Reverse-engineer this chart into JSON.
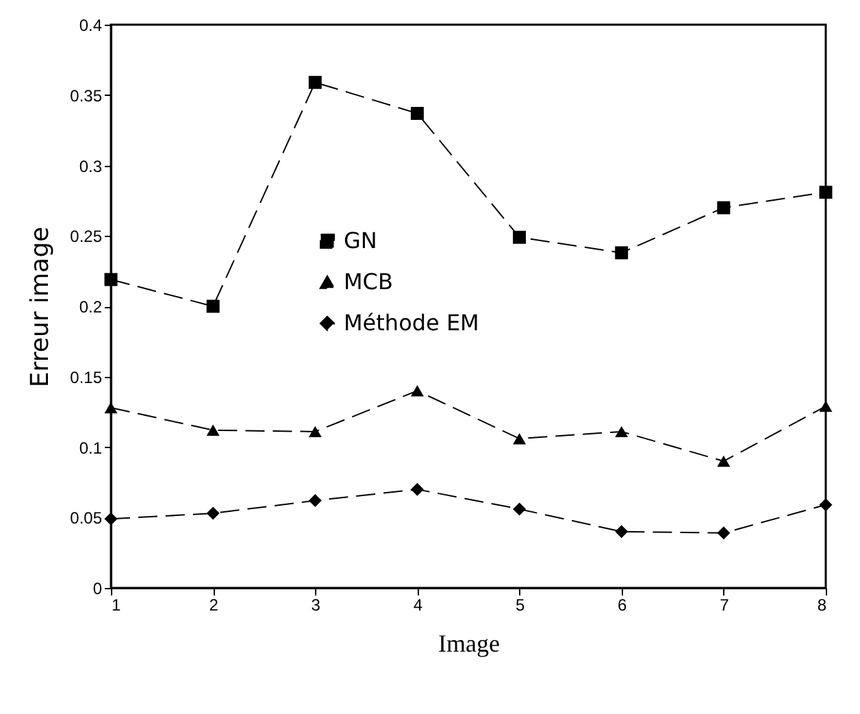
{
  "chart_data": {
    "type": "line",
    "xlabel": "Image",
    "ylabel": "Erreur image",
    "x": [
      1,
      2,
      3,
      4,
      5,
      6,
      7,
      8
    ],
    "series": [
      {
        "name": "GN",
        "color": "#000000",
        "marker": "square",
        "line_style": "dashed",
        "values": [
          0.219,
          0.2,
          0.359,
          0.337,
          0.249,
          0.238,
          0.27,
          0.281
        ]
      },
      {
        "name": "MCB",
        "color": "#000000",
        "marker": "triangle",
        "line_style": "dashed",
        "values": [
          0.128,
          0.112,
          0.111,
          0.14,
          0.106,
          0.111,
          0.09,
          0.129
        ]
      },
      {
        "name": "Méthode EM",
        "color": "#000000",
        "marker": "diamond",
        "line_style": "dashed",
        "values": [
          0.049,
          0.053,
          0.062,
          0.07,
          0.056,
          0.04,
          0.039,
          0.059
        ]
      }
    ],
    "xlim": [
      1,
      8
    ],
    "xticks": [
      1,
      2,
      3,
      4,
      5,
      6,
      7,
      8
    ],
    "ylim": [
      0,
      0.4
    ],
    "yticks": [
      0,
      0.05,
      0.1,
      0.15,
      0.2,
      0.25,
      0.3,
      0.35,
      0.4
    ],
    "grid": false,
    "legend": "center"
  }
}
